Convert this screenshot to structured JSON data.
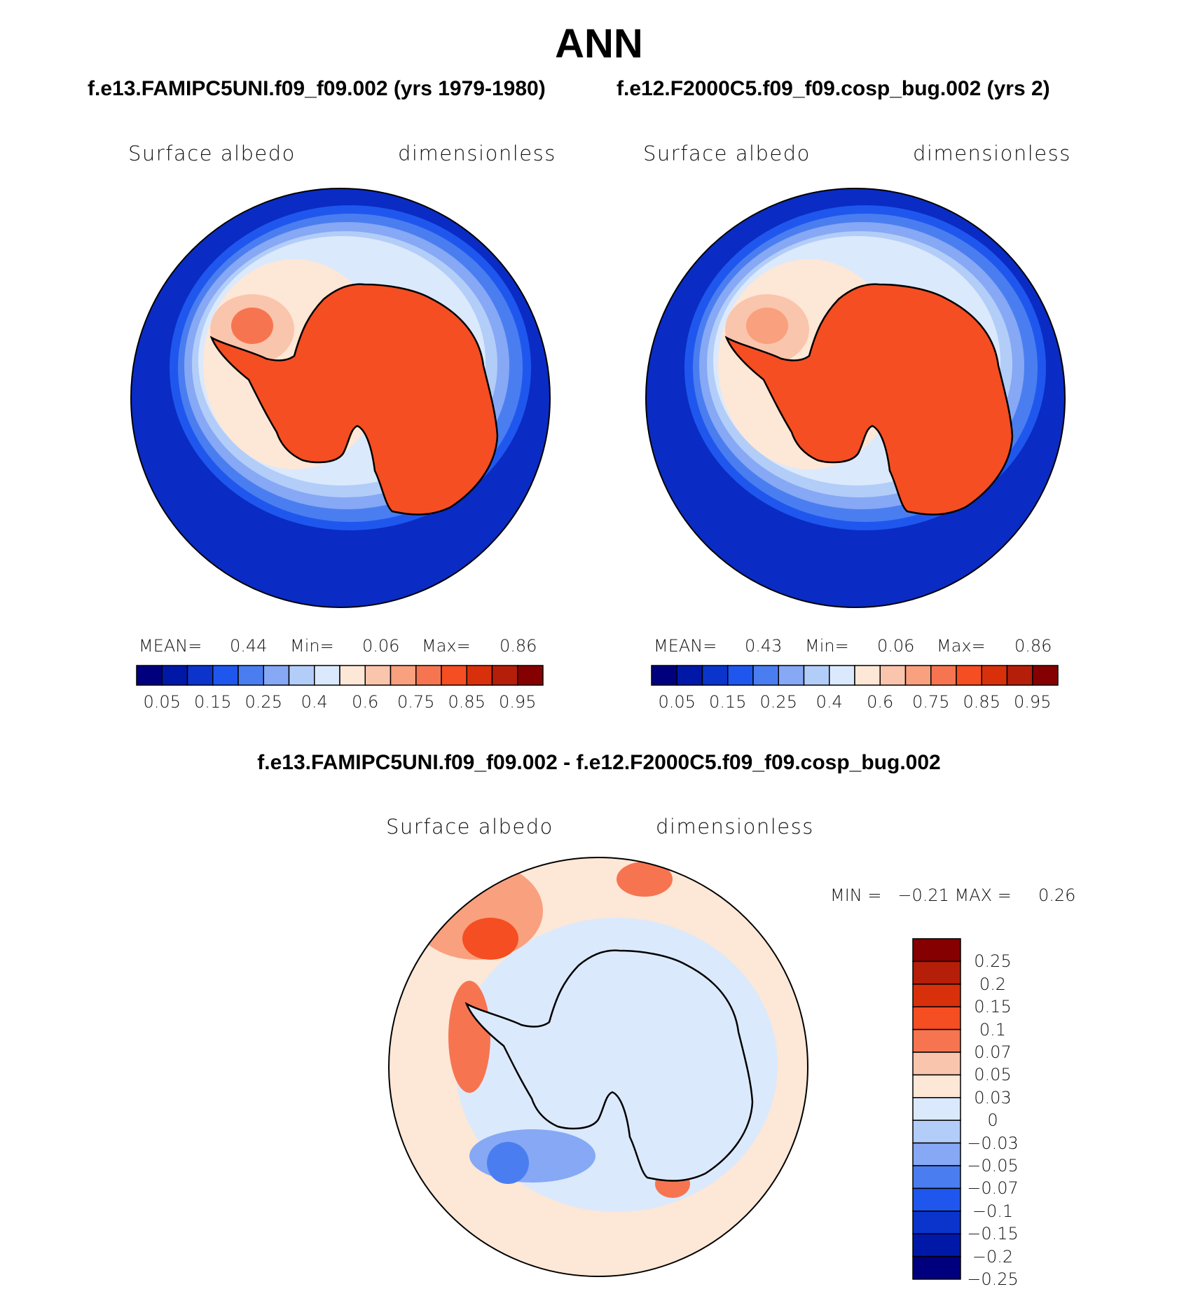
{
  "title": "ANN",
  "panels": [
    {
      "case_title": "f.e13.FAMIPC5UNI.f09_f09.002 (yrs 1979-1980)",
      "variable": "Surface albedo",
      "units": "dimensionless",
      "stats": {
        "mean_label": "MEAN=",
        "mean": "0.44",
        "min_label": "Min=",
        "min": "0.06",
        "max_label": "Max=",
        "max": "0.86"
      }
    },
    {
      "case_title": "f.e12.F2000C5.f09_f09.cosp_bug.002 (yrs 2)",
      "variable": "Surface albedo",
      "units": "dimensionless",
      "stats": {
        "mean_label": "MEAN=",
        "mean": "0.43",
        "min_label": "Min=",
        "min": "0.06",
        "max_label": "Max=",
        "max": "0.86"
      }
    }
  ],
  "diff": {
    "title": "f.e13.FAMIPC5UNI.f09_f09.002 - f.e12.F2000C5.f09_f09.cosp_bug.002",
    "variable": "Surface albedo",
    "units": "dimensionless",
    "minmax_text": "MIN =   −0.21 MAX =     0.26"
  },
  "chart_data": [
    {
      "type": "heatmap",
      "title": "Surface albedo",
      "subtitle": "f.e13.FAMIPC5UNI.f09_f09.002 (yrs 1979-1980)",
      "projection": "south-polar-stereographic",
      "mean": 0.44,
      "min": 0.06,
      "max": 0.86,
      "colorbar_ticks": [
        "0.05",
        "0.15",
        "0.25",
        "0.4",
        "0.6",
        "0.75",
        "0.85",
        "0.95"
      ]
    },
    {
      "type": "heatmap",
      "title": "Surface albedo",
      "subtitle": "f.e12.F2000C5.f09_f09.cosp_bug.002 (yrs 2)",
      "projection": "south-polar-stereographic",
      "mean": 0.43,
      "min": 0.06,
      "max": 0.86,
      "colorbar_ticks": [
        "0.05",
        "0.15",
        "0.25",
        "0.4",
        "0.6",
        "0.75",
        "0.85",
        "0.95"
      ]
    },
    {
      "type": "heatmap",
      "title": "Surface albedo",
      "subtitle": "f.e13.FAMIPC5UNI.f09_f09.002 - f.e12.F2000C5.f09_f09.cosp_bug.002",
      "projection": "south-polar-stereographic",
      "min": -0.21,
      "max": 0.26,
      "colorbar_ticks": [
        "0.25",
        "0.2",
        "0.15",
        "0.1",
        "0.07",
        "0.05",
        "0.03",
        "0",
        "−0.03",
        "−0.05",
        "−0.07",
        "−0.1",
        "−0.15",
        "−0.2",
        "−0.25"
      ]
    }
  ],
  "colors": {
    "abs_scale": [
      "#00007f",
      "#0018a8",
      "#0a34cc",
      "#1f57ee",
      "#4a7ef0",
      "#86a8f5",
      "#b3cdf9",
      "#dbe9fc",
      "#fde7d6",
      "#fac5ad",
      "#f9a07e",
      "#f67550",
      "#f44e22",
      "#d8300b",
      "#b51e09",
      "#850000"
    ],
    "diff_scale": [
      "#850000",
      "#b51e09",
      "#d8300b",
      "#f44e22",
      "#f67550",
      "#fac5ad",
      "#fde7d6",
      "#dbe9fc",
      "#b3cdf9",
      "#86a8f5",
      "#4a7ef0",
      "#1f57ee",
      "#0a34cc",
      "#0018a8",
      "#00007f"
    ]
  }
}
